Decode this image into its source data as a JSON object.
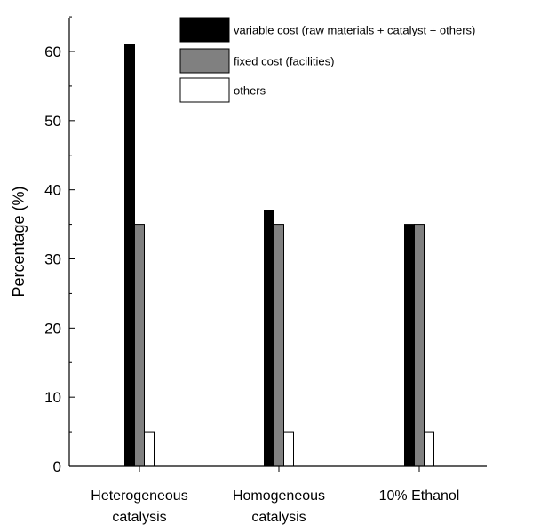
{
  "chart_data": {
    "type": "bar",
    "title": "",
    "xlabel": "",
    "ylabel": "Percentage (%)",
    "ylim": [
      0,
      65
    ],
    "yticks": [
      0,
      10,
      20,
      30,
      40,
      50,
      60
    ],
    "grid": false,
    "legend_position": "top-right",
    "categories": [
      [
        "Heterogeneous",
        "catalysis"
      ],
      [
        "Homogeneous",
        "catalysis"
      ],
      [
        "10% Ethanol"
      ]
    ],
    "series": [
      {
        "name": "variable cost (raw materials + catalyst + others)",
        "color": "#000000",
        "values": [
          61,
          37,
          35
        ]
      },
      {
        "name": "fixed cost (facilities)",
        "color": "#808080",
        "values": [
          35,
          35,
          35
        ]
      },
      {
        "name": "others",
        "color": "#ffffff",
        "values": [
          5,
          5,
          5
        ]
      }
    ]
  }
}
